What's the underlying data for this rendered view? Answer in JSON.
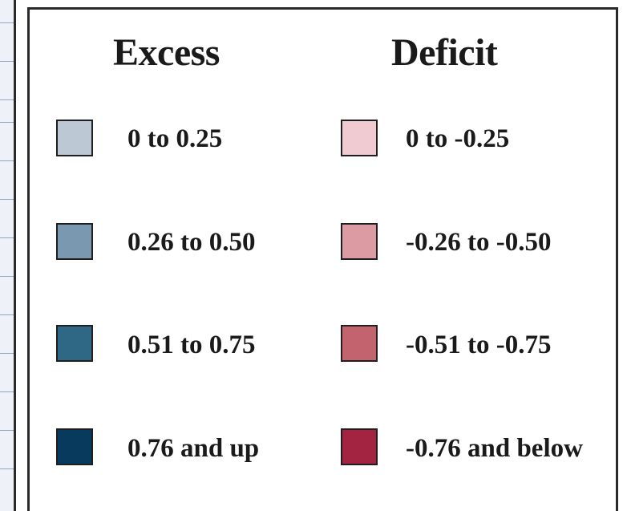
{
  "legend": {
    "excess": {
      "title": "Excess",
      "items": [
        {
          "label": "0 to 0.25",
          "color": "#bcc8d4"
        },
        {
          "label": "0.26 to 0.50",
          "color": "#7a99b0"
        },
        {
          "label": "0.51 to 0.75",
          "color": "#2f6884"
        },
        {
          "label": "0.76 and up",
          "color": "#083a5e"
        }
      ]
    },
    "deficit": {
      "title": "Deficit",
      "items": [
        {
          "label": "0 to -0.25",
          "color": "#f0ccd2"
        },
        {
          "label": "-0.26 to -0.50",
          "color": "#dc9aa2"
        },
        {
          "label": "-0.51 to -0.75",
          "color": "#c2636d"
        },
        {
          "label": "-0.76 and below",
          "color": "#a32440"
        }
      ]
    }
  }
}
